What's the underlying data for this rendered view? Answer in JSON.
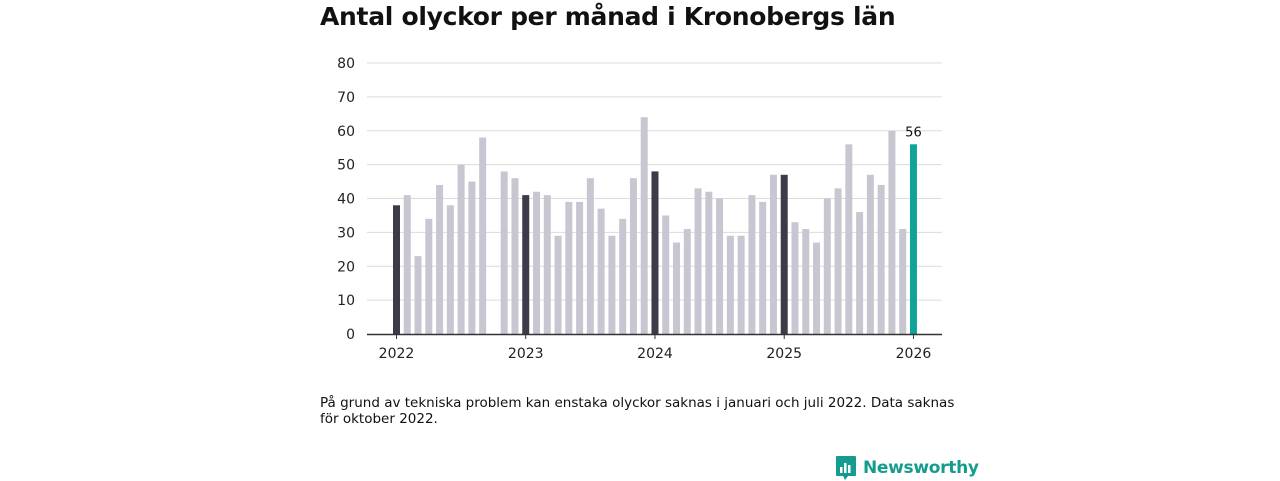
{
  "colors": {
    "bar_regular": "#c8c7d1",
    "bar_january": "#3c3b4a",
    "bar_latest": "#10a39a",
    "grid": "#dcdcdc",
    "axis": "#333333",
    "brand": "#159c8f"
  },
  "chart_data": {
    "type": "bar",
    "title": "Antal olyckor per månad i Kronobergs län",
    "xlabel": "",
    "ylabel": "",
    "ylim": [
      0,
      80
    ],
    "yticks": [
      "0",
      "10",
      "20",
      "30",
      "40",
      "50",
      "60",
      "70",
      "80"
    ],
    "xticks": [
      "2022",
      "2023",
      "2024",
      "2025",
      "2026"
    ],
    "grid": true,
    "months": [
      "2022-01",
      "2022-02",
      "2022-03",
      "2022-04",
      "2022-05",
      "2022-06",
      "2022-07",
      "2022-08",
      "2022-09",
      "2022-10",
      "2022-11",
      "2022-12",
      "2023-01",
      "2023-02",
      "2023-03",
      "2023-04",
      "2023-05",
      "2023-06",
      "2023-07",
      "2023-08",
      "2023-09",
      "2023-10",
      "2023-11",
      "2023-12",
      "2024-01",
      "2024-02",
      "2024-03",
      "2024-04",
      "2024-05",
      "2024-06",
      "2024-07",
      "2024-08",
      "2024-09",
      "2024-10",
      "2024-11",
      "2024-12",
      "2025-01",
      "2025-02",
      "2025-03",
      "2025-04",
      "2025-05",
      "2025-06",
      "2025-07",
      "2025-08",
      "2025-09",
      "2025-10",
      "2025-11",
      "2025-12",
      "2026-01"
    ],
    "values": [
      38,
      41,
      23,
      34,
      44,
      38,
      50,
      45,
      58,
      null,
      48,
      46,
      41,
      42,
      41,
      29,
      39,
      39,
      46,
      37,
      29,
      34,
      46,
      64,
      48,
      35,
      27,
      31,
      43,
      42,
      40,
      29,
      29,
      41,
      39,
      47,
      47,
      33,
      31,
      27,
      40,
      43,
      56,
      36,
      47,
      44,
      60,
      31,
      56
    ],
    "highlight_label": "56"
  },
  "note": "På grund av tekniska problem kan enstaka olyckor saknas i januari och juli 2022. Data saknas för oktober 2022.",
  "brand": {
    "name": "Newsworthy",
    "icon": "bar-chart-speech-icon"
  }
}
